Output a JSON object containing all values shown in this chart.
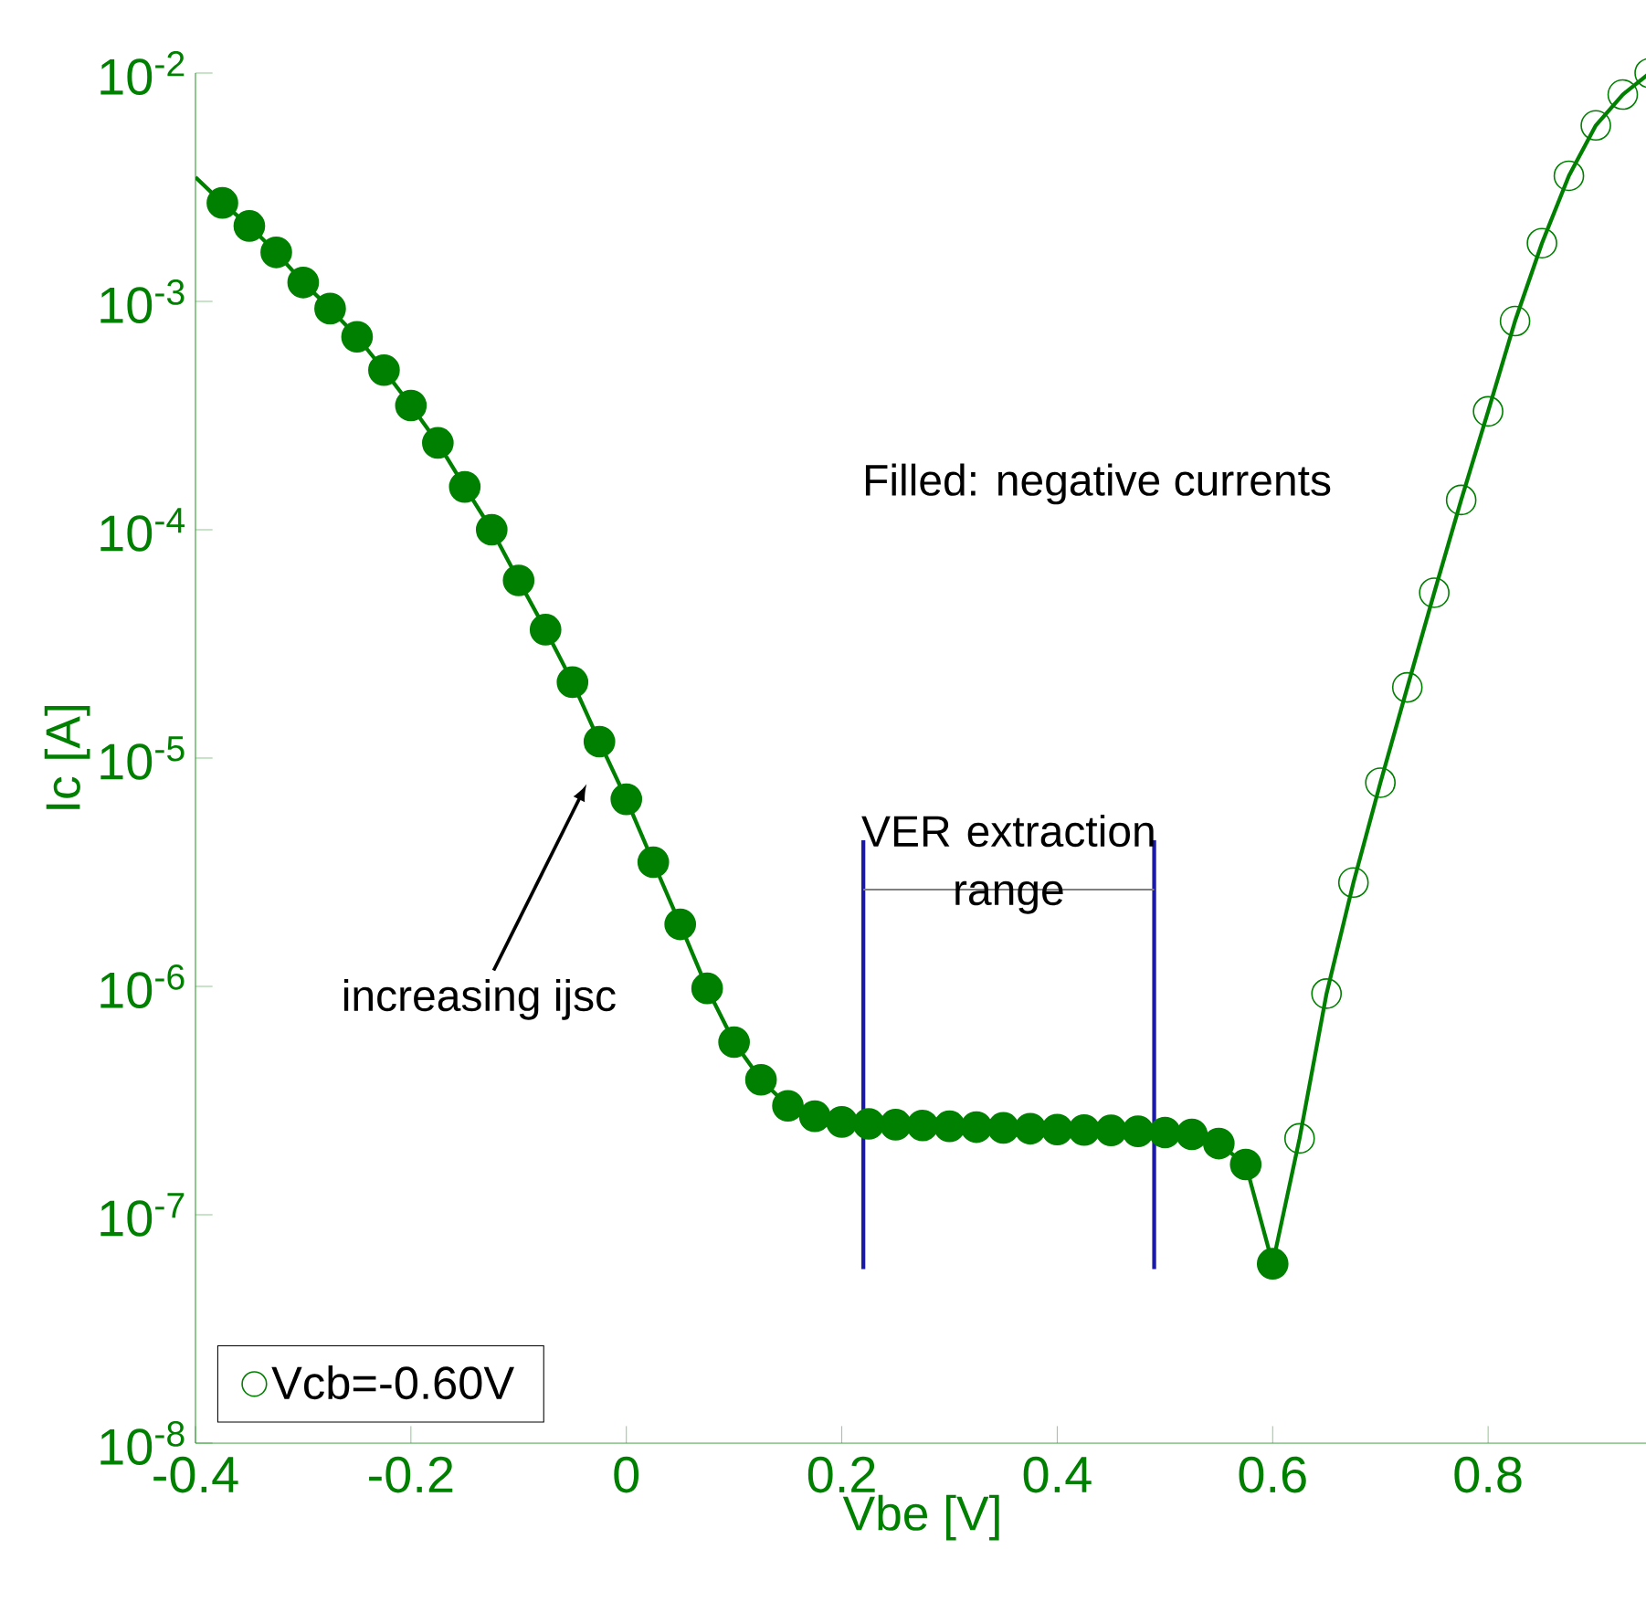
{
  "chart_data": {
    "type": "line",
    "xlabel": "Vbe [V]",
    "ylabel": "Ic [A]",
    "log": "y",
    "xlim": [
      -0.4,
      0.95
    ],
    "ylim": [
      1e-08,
      0.01
    ],
    "xticks": [
      -0.4,
      -0.2,
      0,
      0.2,
      0.4,
      0.6,
      0.8
    ],
    "yticks": [
      {
        "value": 1e-08,
        "label": "10$^{-8}$"
      },
      {
        "value": 1e-07,
        "label": "10$^{-7}$"
      },
      {
        "value": 1e-06,
        "label": "10$^{-6}$"
      },
      {
        "value": 1e-05,
        "label": "10$^{-5}$"
      },
      {
        "value": 0.0001,
        "label": "10$^{-4}$"
      },
      {
        "value": 0.001,
        "label": "10$^{-3}$"
      },
      {
        "value": 0.01,
        "label": "10$^{-2}$"
      }
    ],
    "legend": "bottom left",
    "series": [
      {
        "color": "#008000",
        "marker": "none",
        "line_style": "solid",
        "x": [
          -0.4,
          -0.375,
          -0.35,
          -0.325,
          -0.3,
          -0.275,
          -0.25,
          -0.225,
          -0.2,
          -0.175,
          -0.15,
          -0.125,
          -0.1,
          -0.075,
          -0.05,
          -0.025,
          0,
          0.025,
          0.05,
          0.075,
          0.1,
          0.125,
          0.15,
          0.175,
          0.2,
          0.225,
          0.25,
          0.275,
          0.3,
          0.325,
          0.35,
          0.375,
          0.4,
          0.425,
          0.45,
          0.475,
          0.5,
          0.525,
          0.55,
          0.575,
          0.6,
          0.625,
          0.65,
          0.675,
          0.7,
          0.725,
          0.75,
          0.775,
          0.8,
          0.825,
          0.85,
          0.875,
          0.9,
          0.925,
          0.95
        ],
        "values": [
          0.0035,
          0.0027,
          0.00214,
          0.00164,
          0.00121,
          0.00093,
          0.0007,
          0.0005,
          0.00035,
          0.00024,
          0.000154,
          0.0001,
          6e-05,
          3.65e-05,
          2.15e-05,
          1.18e-05,
          6.6e-06,
          3.5e-06,
          1.87e-06,
          9.8e-07,
          5.7e-07,
          3.9e-07,
          3e-07,
          2.7e-07,
          2.55e-07,
          2.5e-07,
          2.48e-07,
          2.46e-07,
          2.44e-07,
          2.42e-07,
          2.4e-07,
          2.38e-07,
          2.36e-07,
          2.35e-07,
          2.34e-07,
          2.32e-07,
          2.29e-07,
          2.25e-07,
          2.05e-07,
          1.66e-07,
          6.1e-08,
          2.16e-07,
          9.3e-07,
          2.85e-06,
          7.8e-06,
          2.04e-05,
          5.3e-05,
          0.000135,
          0.00033,
          0.00082,
          0.0018,
          0.00355,
          0.0059,
          0.00805,
          0.01
        ]
      },
      {
        "type": "scatter",
        "color": "#008000",
        "marker": "circle",
        "x": [
          -0.375,
          -0.35,
          -0.325,
          -0.3,
          -0.275,
          -0.25,
          -0.225,
          -0.2,
          -0.175,
          -0.15,
          -0.125,
          -0.1,
          -0.075,
          -0.05,
          -0.025,
          0,
          0.025,
          0.05,
          0.075,
          0.1,
          0.125,
          0.15,
          0.175,
          0.2,
          0.225,
          0.25,
          0.275,
          0.3,
          0.325,
          0.35,
          0.375,
          0.4,
          0.425,
          0.45,
          0.475,
          0.5,
          0.525,
          0.55,
          0.575,
          0.6
        ],
        "values": [
          0.0027,
          0.00214,
          0.00164,
          0.00121,
          0.00093,
          0.0007,
          0.0005,
          0.00035,
          0.00024,
          0.000154,
          0.0001,
          6e-05,
          3.65e-05,
          2.15e-05,
          1.18e-05,
          6.6e-06,
          3.5e-06,
          1.87e-06,
          9.8e-07,
          5.7e-07,
          3.9e-07,
          3e-07,
          2.7e-07,
          2.55e-07,
          2.5e-07,
          2.48e-07,
          2.46e-07,
          2.44e-07,
          2.42e-07,
          2.4e-07,
          2.38e-07,
          2.36e-07,
          2.35e-07,
          2.34e-07,
          2.32e-07,
          2.29e-07,
          2.25e-07,
          2.05e-07,
          1.66e-07,
          6.1e-08
        ]
      },
      {
        "type": "scatter",
        "name": "Vcb=-0.60V",
        "color": "#008000",
        "marker": "circle",
        "x": [
          0.625,
          0.65,
          0.675,
          0.7,
          0.725,
          0.75,
          0.775,
          0.8,
          0.825,
          0.85,
          0.875,
          0.9,
          0.925,
          0.95
        ],
        "values": [
          2.16e-07,
          9.3e-07,
          2.85e-06,
          7.8e-06,
          2.04e-05,
          5.3e-05,
          0.000135,
          0.00033,
          0.00082,
          0.0018,
          0.00355,
          0.0059,
          0.00805,
          0.01
        ]
      }
    ],
    "ref_lines": [
      {
        "axis": "x",
        "value": 0.22,
        "color": "#1a1aa6"
      },
      {
        "axis": "x",
        "value": 0.49,
        "color": "#1a1aa6"
      }
    ],
    "annotations": [
      "Filled: negative currents",
      "VER extraction range",
      "increasing ijsc"
    ]
  }
}
